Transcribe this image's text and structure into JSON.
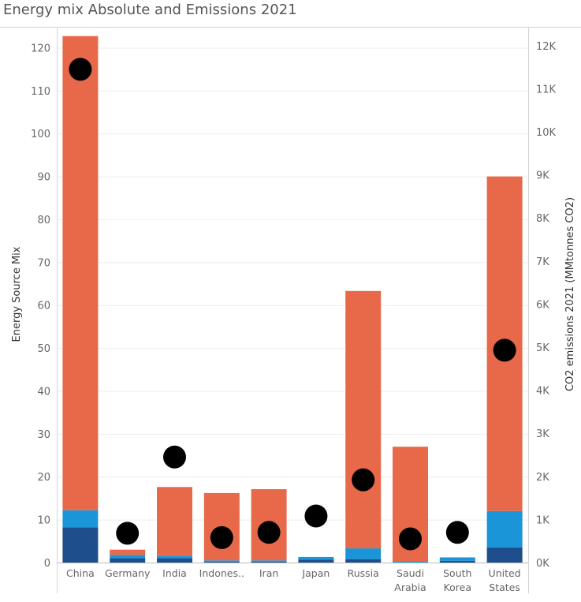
{
  "header": {
    "title": "Energy mix Absolute and Emissions 2021"
  },
  "chart_data": {
    "type": "bar",
    "title": "Energy mix Absolute and Emissions 2021",
    "stacked": true,
    "categories": [
      "China",
      "Germany",
      "India",
      "Indonesia",
      "Iran",
      "Japan",
      "Russia",
      "Saudi Arabia",
      "South Korea",
      "United States"
    ],
    "category_labels": [
      [
        "China"
      ],
      [
        "Germany"
      ],
      [
        "India"
      ],
      [
        "Indones.."
      ],
      [
        "Iran"
      ],
      [
        "Japan"
      ],
      [
        "Russia"
      ],
      [
        "Saudi",
        "Arabia"
      ],
      [
        "South",
        "Korea"
      ],
      [
        "United",
        "States"
      ]
    ],
    "series": [
      {
        "color": "#1f4e8c",
        "values": [
          8.2,
          1.0,
          1.0,
          0.2,
          0.2,
          0.7,
          0.8,
          0.0,
          0.4,
          3.5
        ]
      },
      {
        "color": "#1a95d8",
        "values": [
          4.0,
          0.8,
          0.6,
          0.3,
          0.3,
          0.6,
          2.5,
          0.3,
          0.8,
          8.5
        ]
      },
      {
        "color": "#e8694a",
        "values": [
          110.5,
          1.2,
          16.0,
          15.7,
          16.6,
          0.0,
          60.0,
          26.7,
          0.0,
          78.0
        ]
      }
    ],
    "emissions": {
      "axis": "right",
      "values": [
        11450,
        680,
        2450,
        580,
        700,
        1080,
        1920,
        550,
        700,
        4930
      ]
    },
    "ylabel": "Energy Source Mix",
    "ylim": [
      0,
      124.5
    ],
    "yticks": [
      0,
      10,
      20,
      30,
      40,
      50,
      60,
      70,
      80,
      90,
      100,
      110,
      120
    ],
    "y2label": "CO2 emissions 2021 (MMtonnes CO2)",
    "y2lim": [
      0,
      12400
    ],
    "y2ticks": [
      0,
      1000,
      2000,
      3000,
      4000,
      5000,
      6000,
      7000,
      8000,
      9000,
      10000,
      11000,
      12000
    ],
    "y2ticklabels": [
      "0K",
      "1K",
      "2K",
      "3K",
      "4K",
      "5K",
      "6K",
      "7K",
      "8K",
      "9K",
      "10K",
      "11K",
      "12K"
    ],
    "grid": true
  }
}
